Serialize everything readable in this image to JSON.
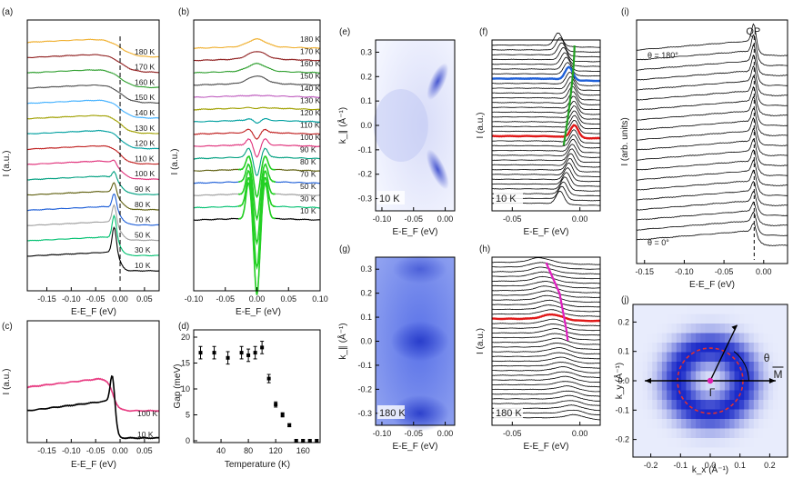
{
  "figure": {
    "description_labels": [
      "(a)",
      "(b)",
      "(c)",
      "(d)",
      "(e)",
      "(f)",
      "(g)",
      "(h)",
      "(i)",
      "(j)"
    ]
  },
  "chart_data": [
    {
      "id": "a",
      "panel_label": "(a)",
      "type": "line",
      "title": "",
      "xlabel": "E-E_F (eV)",
      "ylabel": "I (a.u.)",
      "xlim": [
        -0.19,
        0.08
      ],
      "x_ticks": [
        "-0.15",
        "-0.10",
        "-0.05",
        "0.00",
        "0.05"
      ],
      "x_tick_values": [
        -0.15,
        -0.1,
        -0.05,
        0.0,
        0.05
      ],
      "series_labels": [
        "10 K",
        "30 K",
        "50 K",
        "70 K",
        "80 K",
        "90 K",
        "100 K",
        "110 K",
        "120 K",
        "130 K",
        "140 K",
        "150 K",
        "160 K",
        "170 K",
        "180 K"
      ],
      "series_colors": [
        "#000000",
        "#00c070",
        "#a0a0a0",
        "#1e5fd8",
        "#606010",
        "#00a080",
        "#e0307a",
        "#c02020",
        "#00a0a0",
        "#a0a000",
        "#40b0ff",
        "#505050",
        "#30a030",
        "#902020",
        "#f0b030"
      ],
      "vline_x": 0.0
    },
    {
      "id": "b",
      "panel_label": "(b)",
      "type": "line",
      "xlabel": "E-E_F (eV)",
      "ylabel": "I (a.u.)",
      "xlim": [
        -0.1,
        0.1
      ],
      "x_ticks": [
        "-0.10",
        "-0.05",
        "0.00",
        "0.05",
        "0.10"
      ],
      "x_tick_values": [
        -0.1,
        -0.05,
        0.0,
        0.05,
        0.1
      ],
      "series_labels": [
        "10 K",
        "30 K",
        "50 K",
        "70 K",
        "80 K",
        "90 K",
        "100 K",
        "110 K",
        "120 K",
        "130 K",
        "140 K",
        "150 K",
        "160 K",
        "170 K",
        "180 K"
      ],
      "series_colors": [
        "#000000",
        "#00c070",
        "#a0a0a0",
        "#1e5fd8",
        "#606010",
        "#00a080",
        "#e0307a",
        "#c02020",
        "#00a0a0",
        "#a0a000",
        "#c060c0",
        "#505050",
        "#30a030",
        "#902020",
        "#f0b030"
      ],
      "fit_color": "#22d022"
    },
    {
      "id": "c",
      "panel_label": "(c)",
      "type": "line",
      "xlabel": "E-E_F (eV)",
      "ylabel": "I (a.u.)",
      "xlim": [
        -0.19,
        0.08
      ],
      "x_ticks": [
        "-0.15",
        "-0.10",
        "-0.05",
        "0.00",
        "0.05"
      ],
      "x_tick_values": [
        -0.15,
        -0.1,
        -0.05,
        0.0,
        0.05
      ],
      "series": [
        {
          "name": "100 K",
          "color": "#e83c82"
        },
        {
          "name": "10 K",
          "color": "#000000"
        }
      ]
    },
    {
      "id": "d",
      "panel_label": "(d)",
      "type": "scatter",
      "xlabel": "Temperature (K)",
      "ylabel": "Gap (meV)",
      "xlim": [
        0,
        185
      ],
      "ylim": [
        0,
        20
      ],
      "x_ticks": [
        "40",
        "80",
        "120",
        "160"
      ],
      "x_tick_values": [
        40,
        80,
        120,
        160
      ],
      "y_ticks": [
        "0",
        "5",
        "10",
        "15",
        "20"
      ],
      "y_tick_values": [
        0,
        5,
        10,
        15,
        20
      ],
      "x": [
        10,
        30,
        50,
        70,
        80,
        90,
        100,
        110,
        120,
        130,
        140,
        150,
        160,
        170,
        180
      ],
      "y": [
        17,
        17,
        16,
        17,
        16.5,
        17,
        18,
        12,
        7,
        5,
        3,
        0,
        0,
        0,
        0
      ],
      "yerr": [
        1.2,
        1.2,
        1.2,
        1.2,
        1.2,
        1.2,
        1.2,
        0.8,
        0.5,
        0.4,
        0.3,
        0.2,
        0.2,
        0.2,
        0.2
      ]
    },
    {
      "id": "e",
      "panel_label": "(e)",
      "type": "heatmap",
      "xlabel": "E-E_F (eV)",
      "ylabel": "k_∥ (Å⁻¹)",
      "xlim": [
        -0.11,
        0.015
      ],
      "ylim": [
        -0.35,
        0.35
      ],
      "x_ticks": [
        "-0.10",
        "-0.05",
        "0.00"
      ],
      "x_tick_values": [
        -0.1,
        -0.05,
        0.0
      ],
      "y_ticks": [
        "0.3",
        "0.2",
        "0.1",
        "0.0",
        "-0.1",
        "-0.2",
        "-0.3"
      ],
      "y_tick_values": [
        0.3,
        0.2,
        0.1,
        0.0,
        -0.1,
        -0.2,
        -0.3
      ],
      "label": "10 K"
    },
    {
      "id": "f",
      "panel_label": "(f)",
      "type": "line",
      "xlabel": "E-E_F (eV)",
      "ylabel": "I (a.u.)",
      "xlim": [
        -0.065,
        0.015
      ],
      "x_ticks": [
        "-0.05",
        "0.00"
      ],
      "x_tick_values": [
        -0.05,
        0.0
      ],
      "label": "10 K",
      "highlight_colors": [
        "#1e5fd8",
        "#e01818",
        "#22a022"
      ]
    },
    {
      "id": "g",
      "panel_label": "(g)",
      "type": "heatmap",
      "xlabel": "E-E_F (eV)",
      "ylabel": "k_∥ (Å⁻¹)",
      "xlim": [
        -0.11,
        0.015
      ],
      "ylim": [
        -0.35,
        0.35
      ],
      "x_ticks": [
        "-0.10",
        "-0.05",
        "0.00"
      ],
      "x_tick_values": [
        -0.1,
        -0.05,
        0.0
      ],
      "y_ticks": [
        "0.3",
        "0.2",
        "0.1",
        "0.0",
        "-0.1",
        "-0.2",
        "-0.3"
      ],
      "y_tick_values": [
        0.3,
        0.2,
        0.1,
        0.0,
        -0.1,
        -0.2,
        -0.3
      ],
      "label": "180 K"
    },
    {
      "id": "h",
      "panel_label": "(h)",
      "type": "line",
      "xlabel": "E-E_F (eV)",
      "ylabel": "I (a.u.)",
      "xlim": [
        -0.065,
        0.015
      ],
      "x_ticks": [
        "-0.05",
        "0.00"
      ],
      "x_tick_values": [
        -0.05,
        0.0
      ],
      "label": "180 K",
      "highlight_colors": [
        "#e01818",
        "#e020c0"
      ]
    },
    {
      "id": "i",
      "panel_label": "(i)",
      "type": "line",
      "xlabel": "E-E_F (eV)",
      "ylabel": "I (arb. units)",
      "xlim": [
        -0.16,
        0.03
      ],
      "x_ticks": [
        "-0.15",
        "-0.10",
        "-0.05",
        "0.00"
      ],
      "x_tick_values": [
        -0.15,
        -0.1,
        -0.05,
        0.0
      ],
      "annotations": {
        "qp": "QP",
        "theta_top": "θ = 180°",
        "theta_bottom": "θ = 0°"
      },
      "vline_x": -0.012
    },
    {
      "id": "j",
      "panel_label": "(j)",
      "type": "heatmap",
      "xlabel": "k_x (Å⁻¹)",
      "ylabel": "k_y (Å⁻¹)",
      "xlim": [
        -0.26,
        0.26
      ],
      "ylim": [
        -0.26,
        0.26
      ],
      "x_ticks": [
        "-0.2",
        "-0.1",
        "0.0",
        "0.1",
        "0.2"
      ],
      "x_tick_values": [
        -0.2,
        -0.1,
        0.0,
        0.1,
        0.2
      ],
      "y_ticks": [
        "0.2",
        "0.1",
        "0.0",
        "-0.1",
        "-0.2"
      ],
      "y_tick_values": [
        0.2,
        0.1,
        0.0,
        -0.1,
        -0.2
      ],
      "annotations": {
        "theta": "θ",
        "gamma": "Γ",
        "m": "M"
      },
      "fs_radius": 0.11
    }
  ]
}
